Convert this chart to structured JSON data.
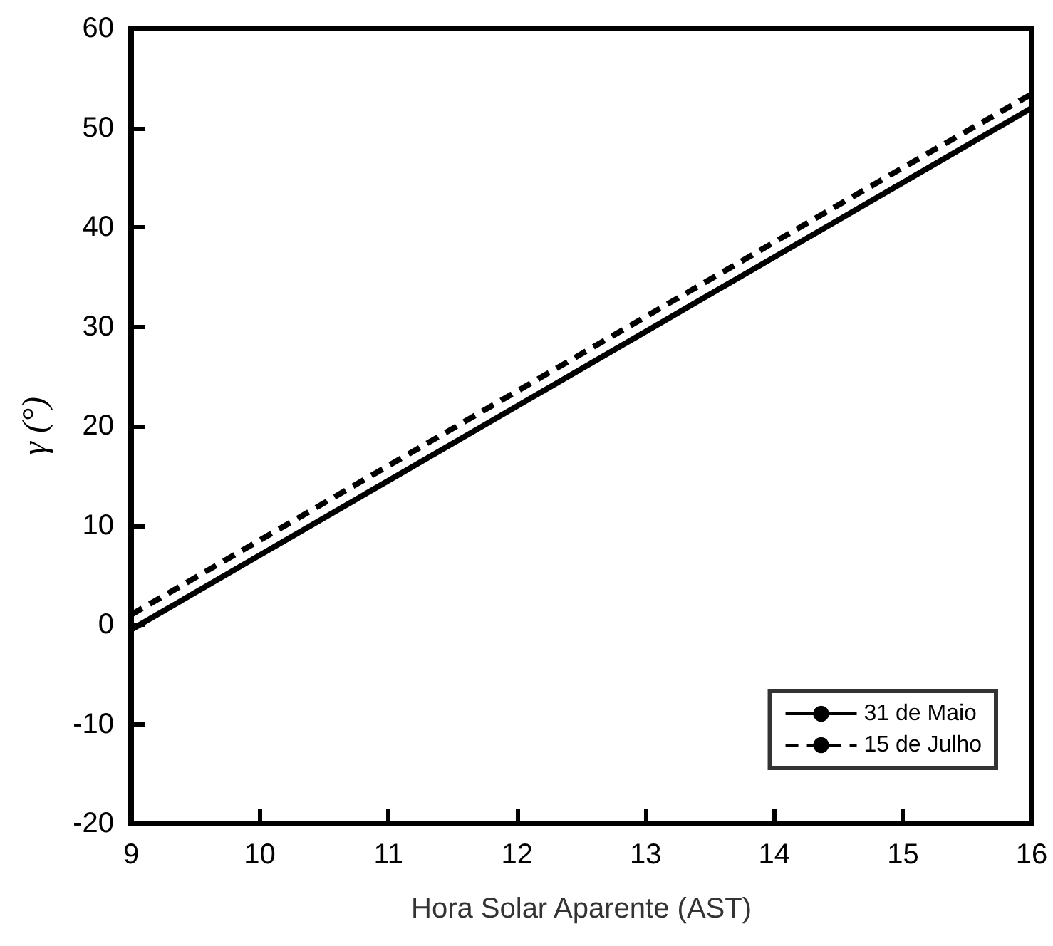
{
  "chart_data": {
    "type": "line",
    "xlabel": "Hora Solar Aparente (AST)",
    "ylabel": "γ (°)",
    "x": [
      9,
      10,
      11,
      12,
      13,
      14,
      15,
      16
    ],
    "series": [
      {
        "name": "31 de Maio",
        "color": "#000000",
        "line_style": "solid",
        "values": [
          -0.5,
          7,
          14.5,
          22,
          29.5,
          37,
          44.5,
          52
        ]
      },
      {
        "name": "15 de Julho",
        "color": "#000000",
        "line_style": "dashed",
        "values": [
          1,
          8.5,
          16,
          23.5,
          31,
          38.5,
          46,
          53.4
        ]
      }
    ],
    "xlim": [
      9,
      16
    ],
    "xticks": [
      9,
      10,
      11,
      12,
      13,
      14,
      15,
      16
    ],
    "ylim": [
      -20,
      60
    ],
    "yticks": [
      -20,
      -10,
      0,
      10,
      20,
      30,
      40,
      50,
      60
    ],
    "grid": false,
    "legend": "bottom right",
    "marker": "none"
  }
}
